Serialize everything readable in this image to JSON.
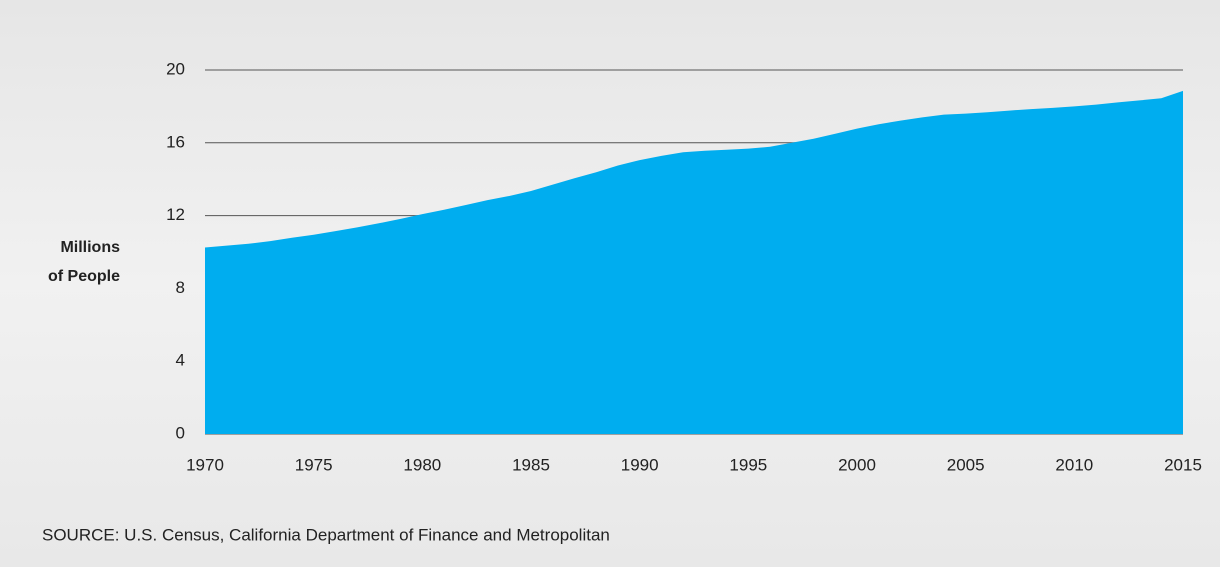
{
  "chart_data": {
    "type": "area",
    "ylabel_lines": [
      "Millions",
      "of People"
    ],
    "source": "SOURCE: U.S. Census, California Department of Finance and Metropolitan",
    "x": [
      1970,
      1971,
      1972,
      1973,
      1974,
      1975,
      1976,
      1977,
      1978,
      1979,
      1980,
      1981,
      1982,
      1983,
      1984,
      1985,
      1986,
      1987,
      1988,
      1989,
      1990,
      1991,
      1992,
      1993,
      1994,
      1995,
      1996,
      1997,
      1998,
      1999,
      2000,
      2001,
      2002,
      2003,
      2004,
      2005,
      2006,
      2007,
      2008,
      2009,
      2010,
      2011,
      2012,
      2013,
      2014,
      2015
    ],
    "values": [
      10.25,
      10.35,
      10.45,
      10.6,
      10.78,
      10.95,
      11.15,
      11.35,
      11.58,
      11.82,
      12.08,
      12.32,
      12.58,
      12.85,
      13.08,
      13.35,
      13.7,
      14.05,
      14.38,
      14.75,
      15.05,
      15.28,
      15.48,
      15.56,
      15.62,
      15.68,
      15.78,
      16.0,
      16.22,
      16.5,
      16.78,
      17.02,
      17.22,
      17.4,
      17.55,
      17.6,
      17.68,
      17.77,
      17.85,
      17.92,
      18.0,
      18.1,
      18.22,
      18.33,
      18.45,
      18.85
    ],
    "color": "#00adef",
    "xlim": [
      1970,
      2015
    ],
    "xticks": [
      1970,
      1975,
      1980,
      1985,
      1990,
      1995,
      2000,
      2005,
      2010,
      2015
    ],
    "ylim": [
      0,
      20
    ],
    "yticks": [
      0,
      4,
      8,
      12,
      16,
      20
    ],
    "grid": true
  }
}
